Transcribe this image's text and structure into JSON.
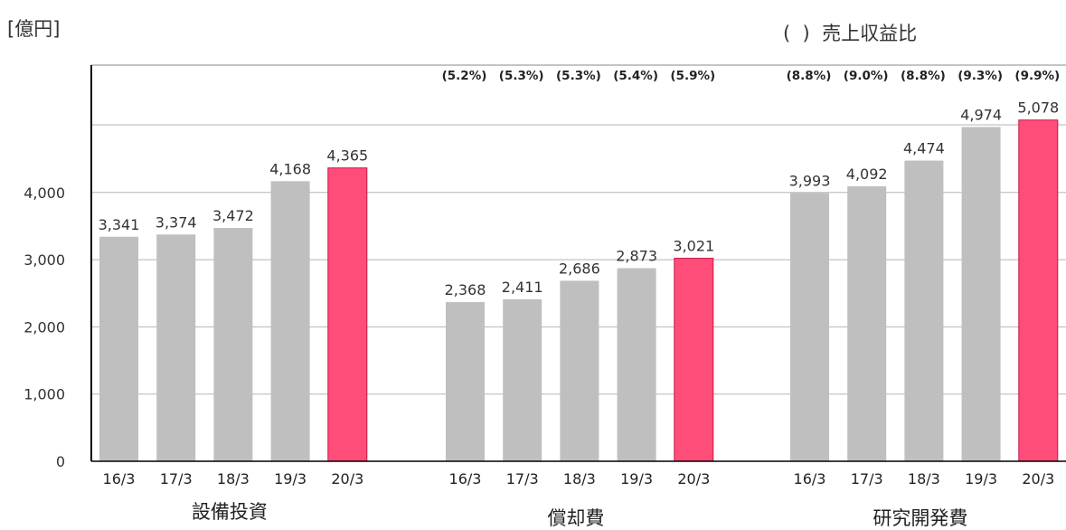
{
  "unit_label": "[億円]",
  "legend_label": "(  )  売上収益比",
  "chart_data": {
    "type": "bar",
    "ylabel": "億円",
    "ylim": [
      0,
      5200
    ],
    "yticks": [
      0,
      1000,
      2000,
      3000,
      4000
    ],
    "ytick_labels": [
      "0",
      "1,000",
      "2,000",
      "3,000",
      "4,000"
    ],
    "grid": true,
    "colors": {
      "past": "#bfbfbf",
      "latest": "#ff4d7a",
      "latest_stroke": "#c8174a"
    },
    "groups": [
      {
        "name": "設備投資",
        "categories": [
          "16/3",
          "17/3",
          "18/3",
          "19/3",
          "20/3"
        ],
        "values": [
          3341,
          3374,
          3472,
          4168,
          4365
        ],
        "value_labels": [
          "3,341",
          "3,374",
          "3,472",
          "4,168",
          "4,365"
        ],
        "ratio_labels": []
      },
      {
        "name": "償却費",
        "categories": [
          "16/3",
          "17/3",
          "18/3",
          "19/3",
          "20/3"
        ],
        "values": [
          2368,
          2411,
          2686,
          2873,
          3021
        ],
        "value_labels": [
          "2,368",
          "2,411",
          "2,686",
          "2,873",
          "3,021"
        ],
        "ratio_labels": [
          "(5.2%)",
          "(5.3%)",
          "(5.3%)",
          "(5.4%)",
          "(5.9%)"
        ]
      },
      {
        "name": "研究開発費",
        "categories": [
          "16/3",
          "17/3",
          "18/3",
          "19/3",
          "20/3"
        ],
        "values": [
          3993,
          4092,
          4474,
          4974,
          5078
        ],
        "value_labels": [
          "3,993",
          "4,092",
          "4,474",
          "4,974",
          "5,078"
        ],
        "ratio_labels": [
          "(8.8%)",
          "(9.0%)",
          "(8.8%)",
          "(9.3%)",
          "(9.9%)"
        ]
      }
    ]
  }
}
